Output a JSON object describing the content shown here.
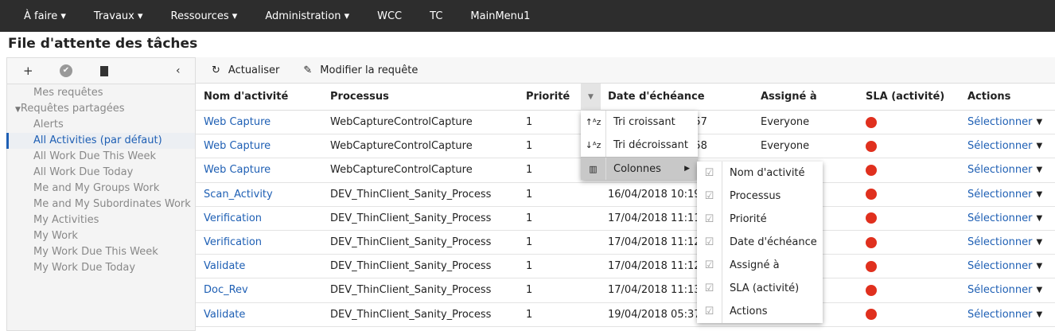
{
  "nav": [
    "À faire ▾",
    "Travaux ▾",
    "Ressources ▾",
    "Administration ▾",
    "WCC",
    "TC",
    "MainMenu1"
  ],
  "page_title": "File d'attente des tâches",
  "sidebar": {
    "items": [
      {
        "label": "Mes requêtes",
        "type": "item"
      },
      {
        "label": "Requêtes partagées",
        "type": "group"
      },
      {
        "label": "Alerts",
        "type": "item"
      },
      {
        "label": "All Activities (par défaut)",
        "type": "item",
        "selected": true
      },
      {
        "label": "All Work Due This Week",
        "type": "item"
      },
      {
        "label": "All Work Due Today",
        "type": "item"
      },
      {
        "label": "Me and My Groups Work",
        "type": "item"
      },
      {
        "label": "Me and My Subordinates Work",
        "type": "item"
      },
      {
        "label": "My Activities",
        "type": "item"
      },
      {
        "label": "My Work",
        "type": "item"
      },
      {
        "label": "My Work Due This Week",
        "type": "item"
      },
      {
        "label": "My Work Due Today",
        "type": "item"
      }
    ]
  },
  "toolbar": {
    "refresh": "Actualiser",
    "edit_query": "Modifier la requête"
  },
  "columns": [
    "Nom d'activité",
    "Processus",
    "Priorité",
    "Date d'échéance",
    "Assigné à",
    "SLA (activité)",
    "Actions"
  ],
  "rows": [
    {
      "name": "Web Capture",
      "process": "WebCaptureControlCapture",
      "priority": "1",
      "date": ":57",
      "assignee": "Everyone",
      "action": "Sélectionner"
    },
    {
      "name": "Web Capture",
      "process": "WebCaptureControlCapture",
      "priority": "1",
      "date": ":58",
      "assignee": "Everyone",
      "action": "Sélectionner"
    },
    {
      "name": "Web Capture",
      "process": "WebCaptureControlCapture",
      "priority": "1",
      "date": "",
      "assignee": "",
      "action": "Sélectionner"
    },
    {
      "name": "Scan_Activity",
      "process": "DEV_ThinClient_Sanity_Process",
      "priority": "1",
      "date": "16/04/2018 10:19",
      "assignee": "",
      "action": "Sélectionner"
    },
    {
      "name": "Verification",
      "process": "DEV_ThinClient_Sanity_Process",
      "priority": "1",
      "date": "17/04/2018 11:11",
      "assignee": "",
      "action": "Sélectionner"
    },
    {
      "name": "Verification",
      "process": "DEV_ThinClient_Sanity_Process",
      "priority": "1",
      "date": "17/04/2018 11:12",
      "assignee": "",
      "action": "Sélectionner"
    },
    {
      "name": "Validate",
      "process": "DEV_ThinClient_Sanity_Process",
      "priority": "1",
      "date": "17/04/2018 11:12",
      "assignee": "",
      "action": "Sélectionner"
    },
    {
      "name": "Doc_Rev",
      "process": "DEV_ThinClient_Sanity_Process",
      "priority": "1",
      "date": "17/04/2018 11:13",
      "assignee": "",
      "action": "Sélectionner"
    },
    {
      "name": "Validate",
      "process": "DEV_ThinClient_Sanity_Process",
      "priority": "1",
      "date": "19/04/2018 05:37",
      "assignee": "",
      "action": "Sélectionner"
    }
  ],
  "sla_color": "#e0301e",
  "column_menu": {
    "sort_asc": "Tri croissant",
    "sort_desc": "Tri décroissant",
    "columns": "Colonnes"
  },
  "columns_submenu": [
    {
      "label": "Nom d'activité",
      "checked": true
    },
    {
      "label": "Processus",
      "checked": true
    },
    {
      "label": "Priorité",
      "checked": true
    },
    {
      "label": "Date d'échéance",
      "checked": true
    },
    {
      "label": "Assigné à",
      "checked": true
    },
    {
      "label": "SLA (activité)",
      "checked": true
    },
    {
      "label": "Actions",
      "checked": true
    }
  ]
}
